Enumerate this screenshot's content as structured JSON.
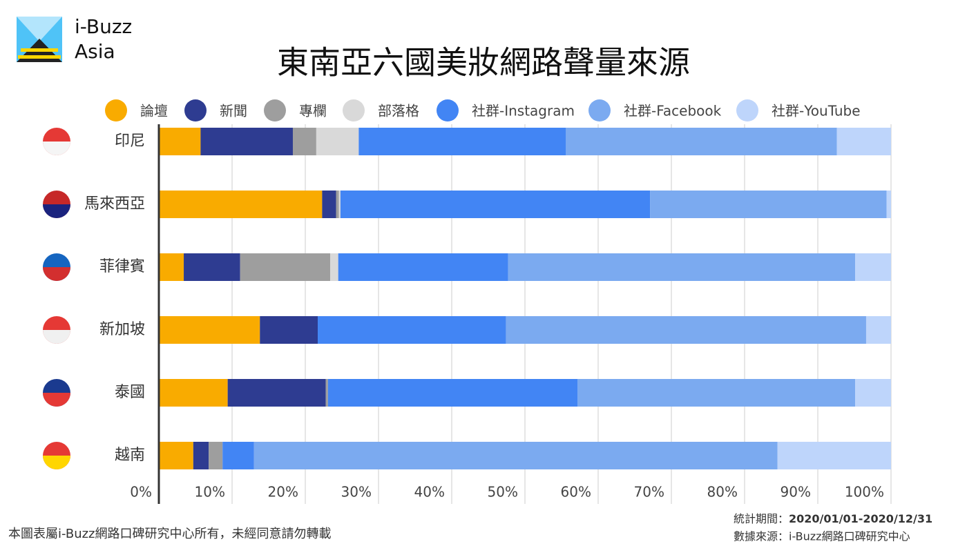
{
  "brand": {
    "line1": "i-Buzz",
    "line2": "Asia"
  },
  "chart_data": {
    "type": "stacked-bar-horizontal",
    "title": "東南亞六國美妝網路聲量來源",
    "categories": [
      "印尼",
      "馬來西亞",
      "菲律賓",
      "新加坡",
      "泰國",
      "越南"
    ],
    "series": [
      {
        "name": "論壇",
        "color": "#f9ab00",
        "values": [
          5.7,
          22.3,
          3.4,
          13.8,
          9.4,
          4.7
        ]
      },
      {
        "name": "新聞",
        "color": "#2e3c91",
        "values": [
          12.6,
          1.9,
          7.7,
          7.9,
          13.4,
          2.1
        ]
      },
      {
        "name": "專欄",
        "color": "#9e9e9e",
        "values": [
          3.2,
          0.4,
          12.3,
          0,
          0.3,
          1.9
        ]
      },
      {
        "name": "部落格",
        "color": "#d9d9d9",
        "values": [
          5.8,
          0.2,
          1.1,
          0,
          0,
          0
        ]
      },
      {
        "name": "社群-Instagram",
        "color": "#4285f4",
        "values": [
          28.3,
          42.3,
          23.2,
          25.7,
          34.1,
          4.3
        ]
      },
      {
        "name": "社群-Facebook",
        "color": "#7baaf0",
        "values": [
          37.0,
          32.3,
          47.4,
          49.2,
          37.9,
          71.5
        ]
      },
      {
        "name": "社群-YouTube",
        "color": "#bed5fb",
        "values": [
          7.4,
          0.6,
          4.9,
          3.4,
          4.9,
          15.5
        ]
      }
    ],
    "xlim": [
      0,
      100
    ],
    "xticks": [
      {
        "value": 0,
        "label": "0%"
      },
      {
        "value": 10,
        "label": "10%"
      },
      {
        "value": 20,
        "label": "20%"
      },
      {
        "value": 30,
        "label": "30%"
      },
      {
        "value": 40,
        "label": "40%"
      },
      {
        "value": 50,
        "label": "50%"
      },
      {
        "value": 60,
        "label": "60%"
      },
      {
        "value": 70,
        "label": "70%"
      },
      {
        "value": 80,
        "label": "80%"
      },
      {
        "value": 90,
        "label": "90%"
      },
      {
        "value": 100,
        "label": "100%"
      }
    ],
    "grid": true
  },
  "footer": {
    "copyright": "本圖表屬i-Buzz網路口碑研究中心所有，未經同意請勿轉載",
    "period_label": "統計期間：",
    "period_value": "2020/01/01-2020/12/31",
    "source": "數據來源：i-Buzz網路口碑研究中心"
  }
}
